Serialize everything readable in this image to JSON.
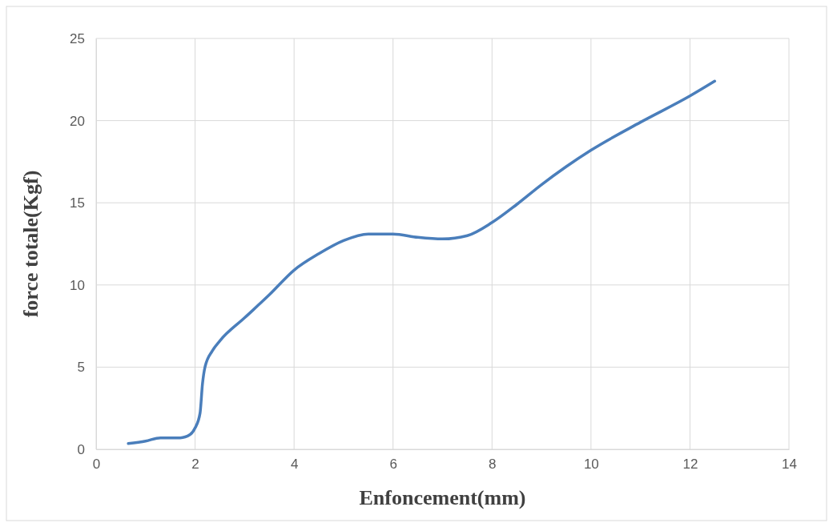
{
  "chart_data": {
    "type": "line",
    "xlabel": "Enfoncement(mm)",
    "ylabel": "force totale(Kgf)",
    "xlim": [
      0,
      14
    ],
    "xticks": [
      0,
      2,
      4,
      6,
      8,
      10,
      12,
      14
    ],
    "ylim": [
      0,
      25
    ],
    "yticks": [
      0,
      5,
      10,
      15,
      20,
      25
    ],
    "grid": true,
    "series": [
      {
        "color": "#4a7ebb",
        "x": [
          0.65,
          1.0,
          1.3,
          1.7,
          1.9,
          2.0,
          2.1,
          2.15,
          2.2,
          2.35,
          2.5,
          3.0,
          3.5,
          4.0,
          4.5,
          5.0,
          5.5,
          6.0,
          6.5,
          7.0,
          7.5,
          8.0,
          8.5,
          9.0,
          9.5,
          10.0,
          11.0,
          12.0,
          12.5
        ],
        "values": [
          0.35,
          0.5,
          0.7,
          0.7,
          0.9,
          1.3,
          2.2,
          4.0,
          5.0,
          6.0,
          6.6,
          8.0,
          9.4,
          10.9,
          11.9,
          12.7,
          13.1,
          13.1,
          12.9,
          12.8,
          13.0,
          13.8,
          14.9,
          16.1,
          17.2,
          18.2,
          19.9,
          21.5,
          22.4
        ]
      }
    ]
  }
}
